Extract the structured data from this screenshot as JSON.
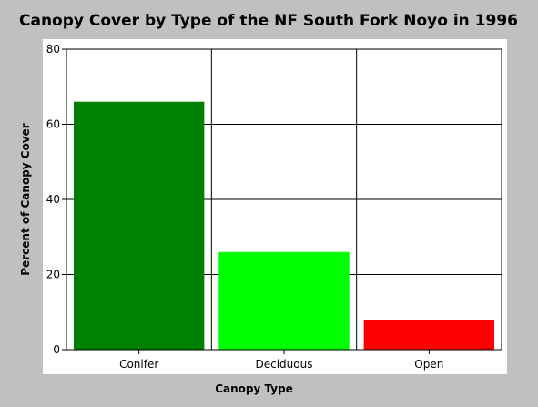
{
  "chart_data": {
    "type": "bar",
    "title": "Canopy Cover by Type of the NF South Fork Noyo in 1996",
    "xlabel": "Canopy Type",
    "ylabel": "Percent of Canopy Cover",
    "categories": [
      "Conifer",
      "Deciduous",
      "Open"
    ],
    "values": [
      66,
      26,
      8
    ],
    "colors": [
      "#008000",
      "#00ff00",
      "#ff0000"
    ],
    "ylim": [
      0,
      80
    ],
    "yticks": [
      0,
      20,
      40,
      60,
      80
    ],
    "grid": true,
    "legend": "none"
  },
  "style": {
    "background": "#c0c0c0",
    "plot_background": "#ffffff",
    "grid_color": "#000000"
  }
}
